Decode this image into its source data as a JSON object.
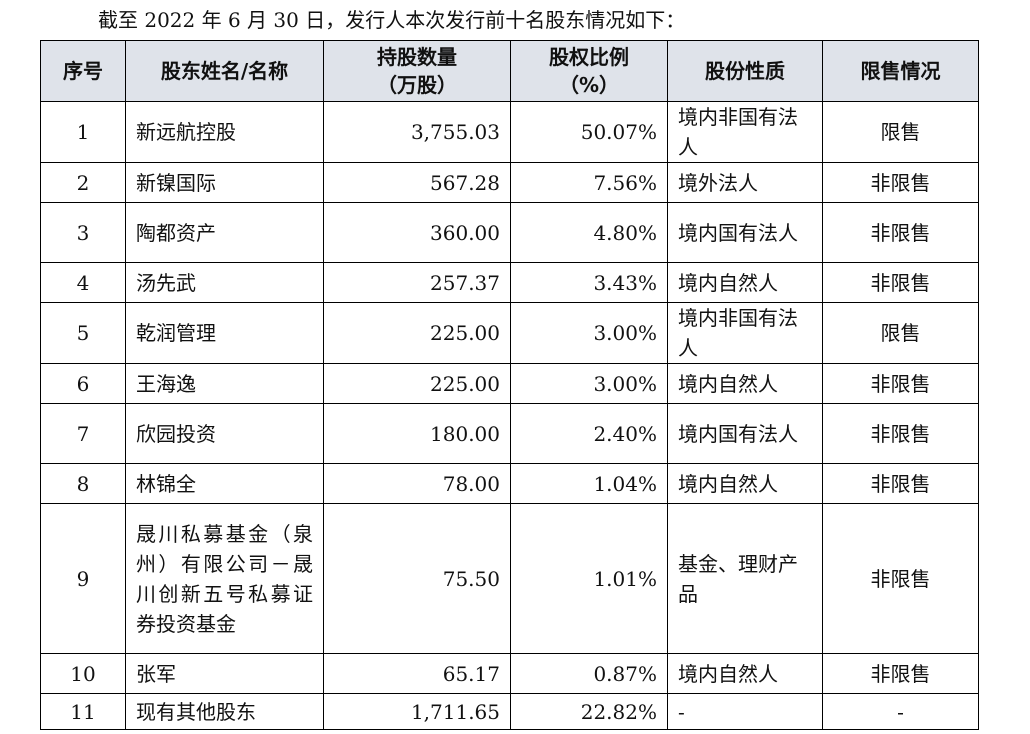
{
  "intro": "截至 2022 年 6 月 30 日，发行人本次发行前十名股东情况如下：",
  "columns": {
    "no": "序号",
    "name": "股东姓名/名称",
    "shares": [
      "持股数量",
      "（万股）"
    ],
    "ratio": [
      "股权比例",
      "（%）"
    ],
    "type": "股份性质",
    "status": "限售情况"
  },
  "rows": [
    {
      "no": "1",
      "name": "新远航控股",
      "shares": "3,755.03",
      "ratio": "50.07%",
      "type": "境内非国有法人",
      "status": "限售"
    },
    {
      "no": "2",
      "name": "新镍国际",
      "shares": "567.28",
      "ratio": "7.56%",
      "type": "境外法人",
      "status": "非限售"
    },
    {
      "no": "3",
      "name": "陶都资产",
      "shares": "360.00",
      "ratio": "4.80%",
      "type": "境内国有法人",
      "status": "非限售"
    },
    {
      "no": "4",
      "name": "汤先武",
      "shares": "257.37",
      "ratio": "3.43%",
      "type": "境内自然人",
      "status": "非限售"
    },
    {
      "no": "5",
      "name": "乾润管理",
      "shares": "225.00",
      "ratio": "3.00%",
      "type": "境内非国有法人",
      "status": "限售"
    },
    {
      "no": "6",
      "name": "王海逸",
      "shares": "225.00",
      "ratio": "3.00%",
      "type": "境内自然人",
      "status": "非限售"
    },
    {
      "no": "7",
      "name": "欣园投资",
      "shares": "180.00",
      "ratio": "2.40%",
      "type": "境内国有法人",
      "status": "非限售"
    },
    {
      "no": "8",
      "name": "林锦全",
      "shares": "78.00",
      "ratio": "1.04%",
      "type": "境内自然人",
      "status": "非限售"
    },
    {
      "no": "9",
      "name": "晟川私募基金（泉州）有限公司－晟川创新五号私募证券投资基金",
      "shares": "75.50",
      "ratio": "1.01%",
      "type": "基金、理财产品",
      "status": "非限售"
    },
    {
      "no": "10",
      "name": "张军",
      "shares": "65.17",
      "ratio": "0.87%",
      "type": "境内自然人",
      "status": "非限售"
    },
    {
      "no": "11",
      "name": "现有其他股东",
      "shares": "1,711.65",
      "ratio": "22.82%",
      "type": "-",
      "status": "-"
    }
  ]
}
